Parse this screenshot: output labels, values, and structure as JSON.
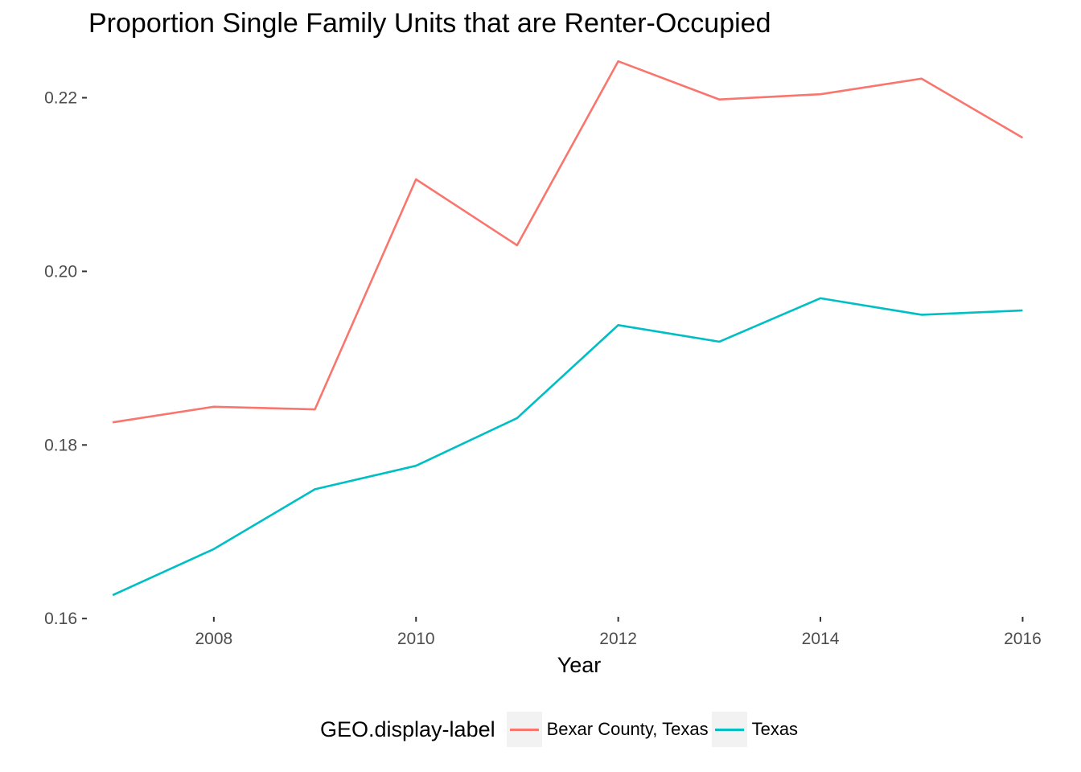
{
  "chart_data": {
    "type": "line",
    "title": "Proportion Single Family Units that are Renter-Occupied",
    "xlabel": "Year",
    "ylabel": "",
    "x": [
      2007,
      2008,
      2009,
      2010,
      2011,
      2012,
      2013,
      2014,
      2015,
      2016
    ],
    "xlim": [
      2006.8,
      2016.1
    ],
    "ylim": [
      0.159,
      0.2257
    ],
    "x_ticks": [
      2008,
      2010,
      2012,
      2014,
      2016
    ],
    "y_ticks": [
      0.16,
      0.18,
      0.2,
      0.22
    ],
    "y_tick_labels": [
      "0.16",
      "0.18",
      "0.20",
      "0.22"
    ],
    "grid": false,
    "legend_position": "bottom",
    "legend_title": "GEO.display-label",
    "series": [
      {
        "name": "Bexar County, Texas",
        "color": "#f8766d",
        "values": [
          0.1826,
          0.1844,
          0.1841,
          0.2106,
          0.203,
          0.2242,
          0.2198,
          0.2204,
          0.2222,
          0.2154
        ]
      },
      {
        "name": "Texas",
        "color": "#00bfc4",
        "values": [
          0.1627,
          0.168,
          0.1749,
          0.1776,
          0.1831,
          0.1938,
          0.1919,
          0.1969,
          0.195,
          0.1955
        ]
      }
    ]
  }
}
